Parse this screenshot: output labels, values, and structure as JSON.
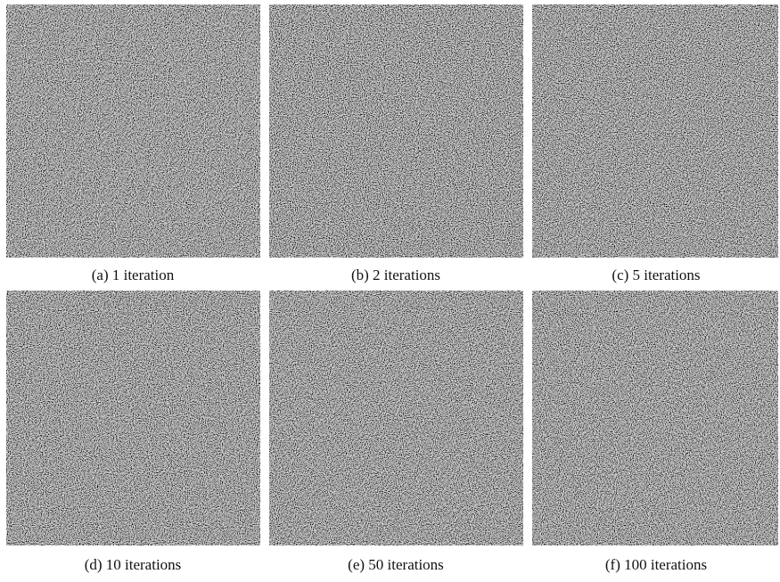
{
  "figure": {
    "panels": [
      {
        "caption": "(a) 1 iteration"
      },
      {
        "caption": "(b) 2 iterations"
      },
      {
        "caption": "(c) 5 iterations"
      },
      {
        "caption": "(d) 10 iterations"
      },
      {
        "caption": "(e) 50 iterations"
      },
      {
        "caption": "(f) 100 iterations"
      }
    ]
  }
}
